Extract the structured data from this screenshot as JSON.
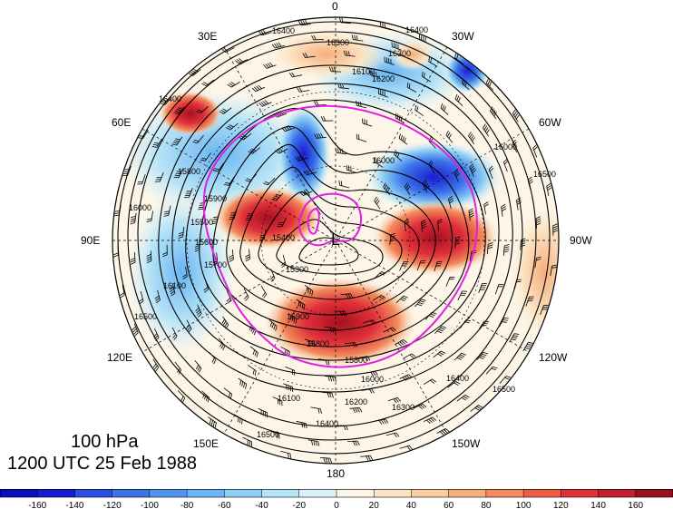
{
  "map": {
    "longitude_labels": [
      "0",
      "30W",
      "60W",
      "90W",
      "120W",
      "150W",
      "180",
      "150E",
      "120E",
      "90E",
      "60E",
      "30E"
    ],
    "contour_labels": [
      "16400",
      "16300",
      "16200",
      "16100",
      "16000",
      "15900",
      "15800",
      "15700",
      "15600",
      "15500",
      "15400",
      "16500",
      "15300"
    ],
    "pole_marker": "L"
  },
  "titles": {
    "level": "100 hPa",
    "time": "1200 UTC 25 Feb 1988"
  },
  "colorbar": {
    "tick_labels": [
      "-160",
      "-140",
      "-120",
      "-100",
      "-80",
      "-60",
      "-40",
      "-20",
      "0",
      "20",
      "40",
      "60",
      "80",
      "100",
      "120",
      "140",
      "160"
    ],
    "colors": [
      "#1b1bd1",
      "#2a4ee0",
      "#3a73e8",
      "#4f95ee",
      "#6ab5f2",
      "#8fd0f5",
      "#b5e3f7",
      "#d9f1f9",
      "#fdf6e8",
      "#fbe4c4",
      "#f9cca0",
      "#f6ae7c",
      "#f28b5c",
      "#ec5d43",
      "#e0303a",
      "#c01f2e",
      "#98101f"
    ],
    "range": [
      -180,
      180
    ],
    "step": 20
  }
}
